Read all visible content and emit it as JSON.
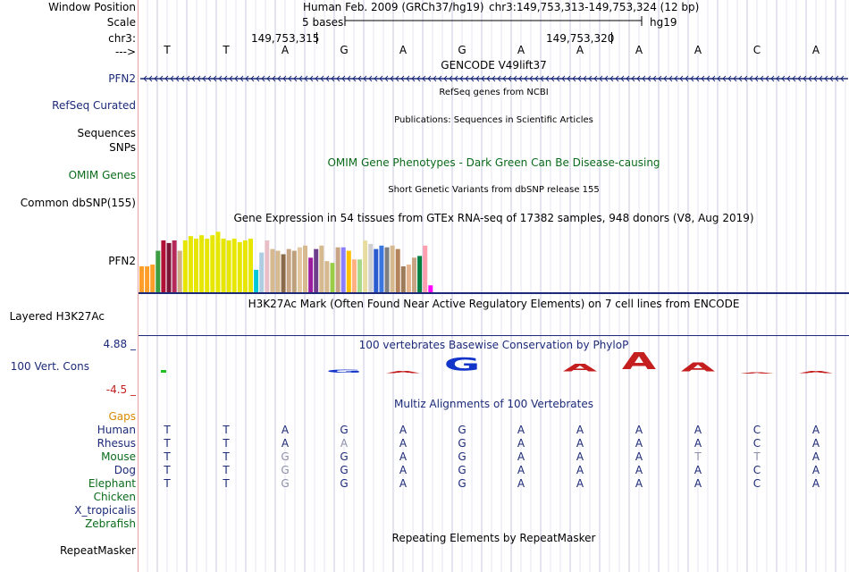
{
  "colors": {
    "navy": "#1c2a78",
    "darkgreen": "#0b6b1b",
    "gray_label": "#8c8fa8",
    "orange": "#d98a00",
    "red": "#c41e1e",
    "blue": "#1234c9",
    "magenta": "#a3009a"
  },
  "labels": {
    "window_position": "Window Position",
    "scale": "Scale",
    "chr": "chr3:",
    "arrow": "--->",
    "pfn2": "PFN2",
    "refseq": "RefSeq Curated",
    "sequences": "Sequences",
    "snps": "SNPs",
    "omim": "OMIM Genes",
    "common_dbsnp": "Common dbSNP(155)",
    "gtex_pfn2": "PFN2",
    "h3k27ac": "Layered H3K27Ac",
    "cons_max": "4.88 _",
    "cons_name": "100 Vert. Cons",
    "cons_min": "-4.5 _",
    "gaps": "Gaps",
    "repeatmasker": "RepeatMasker"
  },
  "header": {
    "assembly": "Human Feb. 2009 (GRCh37/hg19)",
    "position": "chr3:149,753,313-149,753,324 (12 bp)",
    "scale_bases": "5 bases",
    "scale_db": "hg19",
    "coord1": "149,753,315",
    "coord2": "149,753,320"
  },
  "bases": [
    "T",
    "T",
    "A",
    "G",
    "A",
    "G",
    "A",
    "A",
    "A",
    "A",
    "C",
    "A"
  ],
  "tracks": {
    "gencode": "GENCODE V49lift37",
    "refseq_title": "RefSeq genes from NCBI",
    "publications": "Publications: Sequences in Scientific Articles",
    "omim_title": "OMIM Gene Phenotypes - Dark Green Can Be Disease-causing",
    "dbsnp_title": "Short Genetic Variants from dbSNP release 155",
    "gtex_title": "Gene Expression in 54 tissues from GTEx RNA-seq of 17382 samples, 948 donors (V8, Aug 2019)",
    "h3k27ac_title": "H3K27Ac Mark (Often Found Near Active Regulatory Elements) on 7 cell lines from ENCODE",
    "phylop_title": "100 vertebrates Basewise Conservation by PhyloP",
    "multiz_title": "Multiz Alignments of 100 Vertebrates",
    "repeat_title": "Repeating Elements by RepeatMasker"
  },
  "gtex": {
    "values": [
      0.3,
      0.3,
      0.32,
      0.48,
      0.6,
      0.57,
      0.6,
      0.48,
      0.6,
      0.65,
      0.62,
      0.66,
      0.62,
      0.66,
      0.7,
      0.62,
      0.6,
      0.62,
      0.58,
      0.6,
      0.62,
      0.26,
      0.46,
      0.6,
      0.5,
      0.48,
      0.44,
      0.5,
      0.48,
      0.52,
      0.54,
      0.4,
      0.5,
      0.54,
      0.36,
      0.34,
      0.52,
      0.52,
      0.48,
      0.38,
      0.38,
      0.6,
      0.56,
      0.5,
      0.54,
      0.52,
      0.54,
      0.5,
      0.3,
      0.32,
      0.4,
      0.42,
      0.54,
      0.08
    ],
    "colors": [
      "#ff9f2a",
      "#ff9f2a",
      "#ff9f2a",
      "#3b9d40",
      "#b10f35",
      "#7a1537",
      "#b52a5a",
      "#cfae88",
      "#e6e600",
      "#e6e600",
      "#e6e600",
      "#e6e600",
      "#e6e600",
      "#e6e600",
      "#e6e600",
      "#e6e600",
      "#e6e600",
      "#e6e600",
      "#e6e600",
      "#e6e600",
      "#e6e600",
      "#00c6d8",
      "#aecde0",
      "#e8bfc7",
      "#d6b98f",
      "#d6b98f",
      "#8b6a4a",
      "#c7a584",
      "#bda07b",
      "#e3c7a0",
      "#d6b98f",
      "#9b1c9e",
      "#6e3c8a",
      "#d6b98f",
      "#d6b98f",
      "#9bcc48",
      "#c7a584",
      "#8a80ff",
      "#ffc000",
      "#ffb080",
      "#a6d98a",
      "#e8dca0",
      "#d0d0d0",
      "#2b5ccf",
      "#3a75e0",
      "#7f7f7f",
      "#d6b98f",
      "#b5835a",
      "#9e7b58",
      "#e6b48c",
      "#c7a584",
      "#008040",
      "#ff9fb0",
      "#ff00ff"
    ]
  },
  "conservation": [
    {
      "ch": "",
      "h": 0.03,
      "color": "#20c020"
    },
    {
      "ch": "",
      "h": 0.0,
      "color": "#1234c9"
    },
    {
      "ch": "",
      "h": 0.0,
      "color": "#1234c9"
    },
    {
      "ch": "G",
      "h": 0.18,
      "color": "#1234c9"
    },
    {
      "ch": "A",
      "h": 0.15,
      "color": "#c41e1e"
    },
    {
      "ch": "G",
      "h": 0.75,
      "color": "#1234c9"
    },
    {
      "ch": "",
      "h": 0.0,
      "color": "#c41e1e"
    },
    {
      "ch": "A",
      "h": 0.45,
      "color": "#c41e1e"
    },
    {
      "ch": "A",
      "h": 1.0,
      "color": "#c41e1e"
    },
    {
      "ch": "A",
      "h": 0.5,
      "color": "#c41e1e"
    },
    {
      "ch": "A",
      "h": 0.04,
      "color": "#c41e1e"
    },
    {
      "ch": "A",
      "h": 0.12,
      "color": "#c41e1e"
    }
  ],
  "alignment": [
    {
      "species": "Human",
      "color": "#1c2a78",
      "seq": [
        "T",
        "T",
        "A",
        "G",
        "A",
        "G",
        "A",
        "A",
        "A",
        "A",
        "C",
        "A"
      ],
      "dim": []
    },
    {
      "species": "Rhesus",
      "color": "#1c2a78",
      "seq": [
        "T",
        "T",
        "A",
        "A",
        "A",
        "G",
        "A",
        "A",
        "A",
        "A",
        "C",
        "A"
      ],
      "dim": [
        3
      ]
    },
    {
      "species": "Mouse",
      "color": "#0b6b1b",
      "seq": [
        "T",
        "T",
        "G",
        "G",
        "A",
        "G",
        "A",
        "A",
        "A",
        "T",
        "T",
        "A"
      ],
      "dim": [
        2,
        9,
        10
      ]
    },
    {
      "species": "Dog",
      "color": "#1c2a78",
      "seq": [
        "T",
        "T",
        "G",
        "G",
        "A",
        "G",
        "A",
        "A",
        "A",
        "A",
        "C",
        "A"
      ],
      "dim": [
        2
      ]
    },
    {
      "species": "Elephant",
      "color": "#0b6b1b",
      "seq": [
        "T",
        "T",
        "G",
        "G",
        "A",
        "G",
        "A",
        "A",
        "A",
        "A",
        "C",
        "A"
      ],
      "dim": [
        2
      ]
    },
    {
      "species": "Chicken",
      "color": "#0b6b1b",
      "seq": [],
      "dim": []
    },
    {
      "species": "X_tropicalis",
      "color": "#1c2a78",
      "seq": [],
      "dim": []
    },
    {
      "species": "Zebrafish",
      "color": "#0b6b1b",
      "seq": [],
      "dim": []
    }
  ]
}
